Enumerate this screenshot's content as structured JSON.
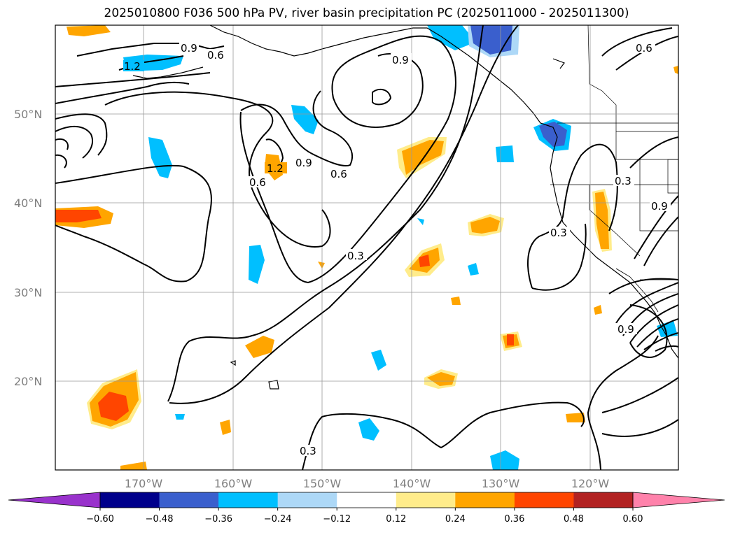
{
  "title": "2025010800 F036 500 hPa PV, river basin precipitation PC (2025011000 - 2025011300)",
  "map": {
    "lat_labels": [
      "50°N",
      "40°N",
      "30°N",
      "20°N"
    ],
    "lon_labels": [
      "170°W",
      "160°W",
      "150°W",
      "140°W",
      "130°W",
      "120°W"
    ],
    "contour_labels": [
      "1.2",
      "0.9",
      "0.6",
      "0.6",
      "0.3",
      "0.3",
      "0.9",
      "0.6",
      "0.9",
      "0.6",
      "0.3",
      "0.9",
      "0.3"
    ]
  },
  "colorbar": {
    "tick_labels": [
      "−0.60",
      "−0.48",
      "−0.36",
      "−0.24",
      "−0.12",
      "0.12",
      "0.24",
      "0.36",
      "0.48",
      "0.60"
    ],
    "colors": [
      "#9932cc",
      "#00008b",
      "#3a5fcd",
      "#00bfff",
      "#add8f7",
      "#ffffff",
      "#ffec8b",
      "#ffa500",
      "#ff4500",
      "#b22222",
      "#ff82ab"
    ]
  }
}
